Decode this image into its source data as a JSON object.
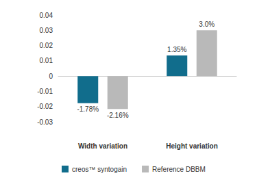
{
  "chart_data": {
    "type": "bar",
    "categories": [
      "Width variation",
      "Height variation"
    ],
    "series": [
      {
        "name": "creos™ syntogain",
        "color": "#116d8c",
        "values": [
          -0.0178,
          0.0135
        ],
        "value_labels": [
          "-1.78%",
          "1.35%"
        ]
      },
      {
        "name": "Reference DBBM",
        "color": "#b9b9b9",
        "values": [
          -0.0216,
          0.03
        ],
        "value_labels": [
          "-2.16%",
          "3.0%"
        ]
      }
    ],
    "ylim": [
      -0.03,
      0.04
    ],
    "yticks": [
      -0.03,
      -0.02,
      -0.01,
      0,
      0.01,
      0.02,
      0.03,
      0.04
    ],
    "grid": false,
    "legend": "bottom",
    "data_labels": true
  }
}
